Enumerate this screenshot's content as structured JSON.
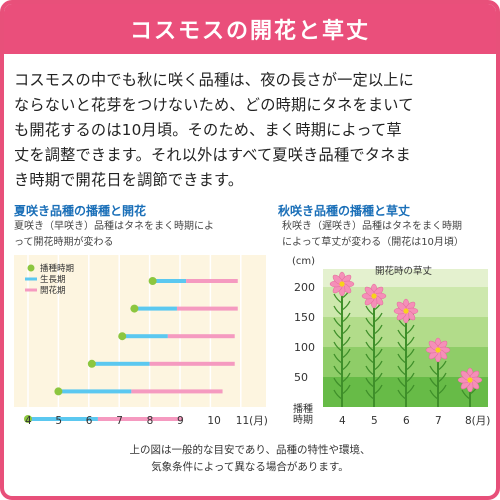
{
  "header": {
    "title": "コスモスの開花と草丈"
  },
  "intro": {
    "lines": [
      "コスモスの中でも秋に咲く品種は、夜の長さが一定以上に",
      "ならないと花芽をつけないため、どの時期にタネをまいて",
      "も開花するのは10月頃。そのため、まく時期によって草",
      "丈を調整できます。それ以外はすべて夏咲き品種でタネま",
      "き時期で開花日を調節できます。"
    ]
  },
  "left_panel": {
    "title": "夏咲き品種の播種と開花",
    "subtitle_lines": [
      "夏咲き（早咲き）品種はタネをまく時期によ",
      "って開花時期が変わる"
    ]
  },
  "right_panel": {
    "title": "秋咲き品種の播種と草丈",
    "subtitle_lines": [
      "秋咲き（遅咲き）品種はタネをまく時期",
      "によって草丈が変わる（開花は10月頃）"
    ]
  },
  "note": {
    "lines": [
      "上の図は一般的な目安であり、品種の特性や環境、",
      "気象条件によって異なる場合があります。"
    ]
  },
  "colors": {
    "accent": "#ea4f7b",
    "sow": "#8cc63f",
    "grow": "#5bc8f0",
    "bloom": "#f59ac0",
    "title_blue": "#1a6fb8"
  },
  "chart_data": [
    {
      "type": "bar",
      "chart_role": "gantt",
      "legend": [
        {
          "name": "播種時期",
          "color": "#8cc63f"
        },
        {
          "name": "生長期",
          "color": "#5bc8f0"
        },
        {
          "name": "開花期",
          "color": "#f59ac0"
        }
      ],
      "x_ticks": [
        "4",
        "5",
        "6",
        "7",
        "8",
        "9",
        "10",
        "11(月)"
      ],
      "xlim": [
        4,
        11
      ],
      "rows": [
        {
          "sow": 8.1,
          "grow_end": 9.2,
          "bloom_end": 10.9
        },
        {
          "sow": 7.5,
          "grow_end": 8.9,
          "bloom_end": 10.9
        },
        {
          "sow": 7.1,
          "grow_end": 8.6,
          "bloom_end": 10.8
        },
        {
          "sow": 6.1,
          "grow_end": 8.0,
          "bloom_end": 10.8
        },
        {
          "sow": 5.0,
          "grow_end": 7.4,
          "bloom_end": 10.4
        },
        {
          "sow": 4.0,
          "grow_end": 6.3,
          "bloom_end": 9.1
        }
      ]
    },
    {
      "type": "bar",
      "chart_role": "plant-height",
      "unit_label": "(cm)",
      "ylabel_lines": [
        "播種",
        "時期"
      ],
      "in_chart_label": "開花時の草丈",
      "y_ticks": [
        50,
        100,
        150,
        200
      ],
      "ylim": [
        0,
        230
      ],
      "categories": [
        "4",
        "5",
        "6",
        "7",
        "8(月)"
      ],
      "values": [
        205,
        185,
        160,
        95,
        45
      ]
    }
  ]
}
